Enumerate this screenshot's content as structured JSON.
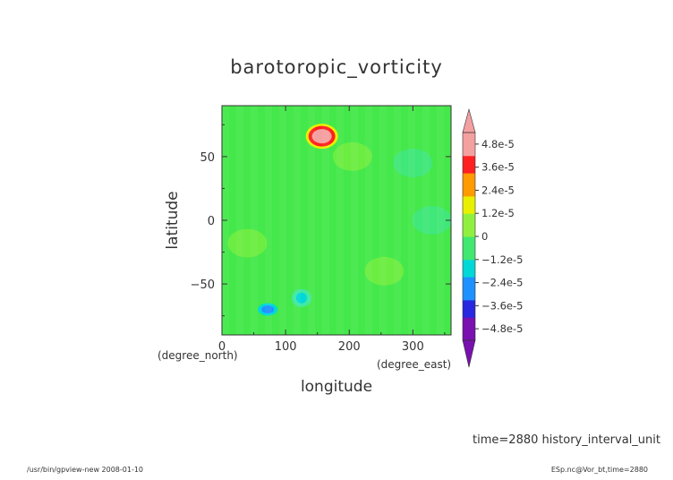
{
  "chart_data": {
    "type": "heatmap",
    "title": "barotoropic_vorticity",
    "xlabel": "longitude",
    "ylabel": "latitude",
    "xunit": "(degree_east)",
    "yunit": "(degree_north)",
    "xlim": [
      0,
      360
    ],
    "ylim": [
      -90,
      90
    ],
    "xticks": [
      0,
      100,
      200,
      300
    ],
    "xtick_labels": [
      "0",
      "100",
      "200",
      "300"
    ],
    "yticks": [
      50,
      0,
      -50
    ],
    "ytick_labels": [
      "50",
      "0",
      "−50"
    ],
    "colorbar": {
      "labels": [
        {
          "value": 4.8e-05,
          "text": "4.8e-5"
        },
        {
          "value": 3.6e-05,
          "text": "3.6e-5"
        },
        {
          "value": 2.4e-05,
          "text": "2.4e-5"
        },
        {
          "value": 1.2e-05,
          "text": "1.2e-5"
        },
        {
          "value": 0,
          "text": "0"
        },
        {
          "value": -1.2e-05,
          "text": "−1.2e-5"
        },
        {
          "value": -2.4e-05,
          "text": "−2.4e-5"
        },
        {
          "value": -3.6e-05,
          "text": "−3.6e-5"
        },
        {
          "value": -4.8e-05,
          "text": "−4.8e-5"
        }
      ],
      "range": [
        -5.4e-05,
        5.4e-05
      ],
      "colors_low_to_high": [
        "#7a10b0",
        "#2828e0",
        "#1e90ff",
        "#00d8d8",
        "#40e870",
        "#90f040",
        "#e8f000",
        "#ff9a00",
        "#ff2020",
        "#f4a0a0"
      ]
    },
    "background_value": 2e-06,
    "features": [
      {
        "lon": 157,
        "lat": 66,
        "value": 5e-05
      },
      {
        "lon": 72,
        "lat": -70,
        "value": -2.6e-05
      },
      {
        "lon": 125,
        "lat": -61,
        "value": -1.4e-05
      },
      {
        "lon": 40,
        "lat": -18,
        "value": 1e-05
      },
      {
        "lon": 255,
        "lat": -40,
        "value": 8e-06
      },
      {
        "lon": 205,
        "lat": 50,
        "value": 6e-06
      },
      {
        "lon": 330,
        "lat": 0,
        "value": -5e-06
      },
      {
        "lon": 300,
        "lat": 45,
        "value": -5e-06
      }
    ]
  },
  "time_label": "time=2880  history_interval_unit",
  "footer": {
    "left": "/usr/bin/gpview-new  2008-01-10",
    "right": "ESp.nc@Vor_bt,time=2880"
  },
  "colors": {
    "background_field": "#44e84a",
    "axis": "#333333"
  }
}
